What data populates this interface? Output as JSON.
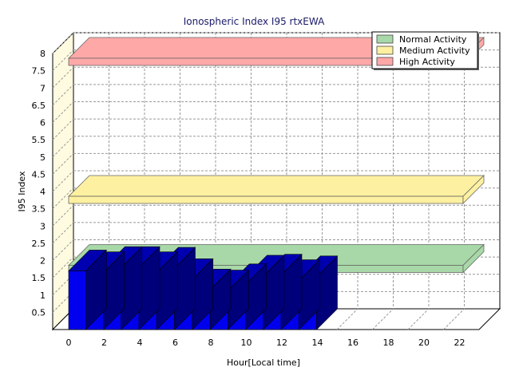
{
  "chart_data": {
    "type": "bar",
    "title": "Ionospheric Index I95 rtxEWA",
    "xlabel": "Hour[Local time]",
    "ylabel": "I95 Index",
    "ylim": [
      0,
      8
    ],
    "xlim": [
      0,
      24
    ],
    "y_ticks": [
      "0.5",
      "1",
      "1.5",
      "2",
      "2.5",
      "3",
      "3.5",
      "4",
      "4.5",
      "5",
      "5.5",
      "6",
      "6.5",
      "7",
      "7.5",
      "8"
    ],
    "x_ticks": [
      "0",
      "2",
      "4",
      "6",
      "8",
      "10",
      "12",
      "14",
      "16",
      "18",
      "20",
      "22"
    ],
    "grid": true,
    "legend_position": "top-right",
    "bar_color": "#0000ee",
    "hours": [
      0,
      1,
      2,
      3,
      4,
      5,
      6,
      7,
      8,
      9,
      10,
      11,
      12,
      13
    ],
    "values": [
      1.7,
      1.65,
      1.8,
      1.8,
      1.65,
      1.78,
      1.45,
      1.15,
      1.12,
      1.3,
      1.55,
      1.58,
      1.42,
      1.53
    ],
    "bands": [
      {
        "name": "Normal Activity",
        "level": 2.0,
        "color": "#a8d8a8"
      },
      {
        "name": "Medium Activity",
        "level": 4.0,
        "color": "#fdf0a0"
      },
      {
        "name": "High Activity",
        "level": 8.0,
        "color": "#ffa8a8"
      }
    ]
  }
}
